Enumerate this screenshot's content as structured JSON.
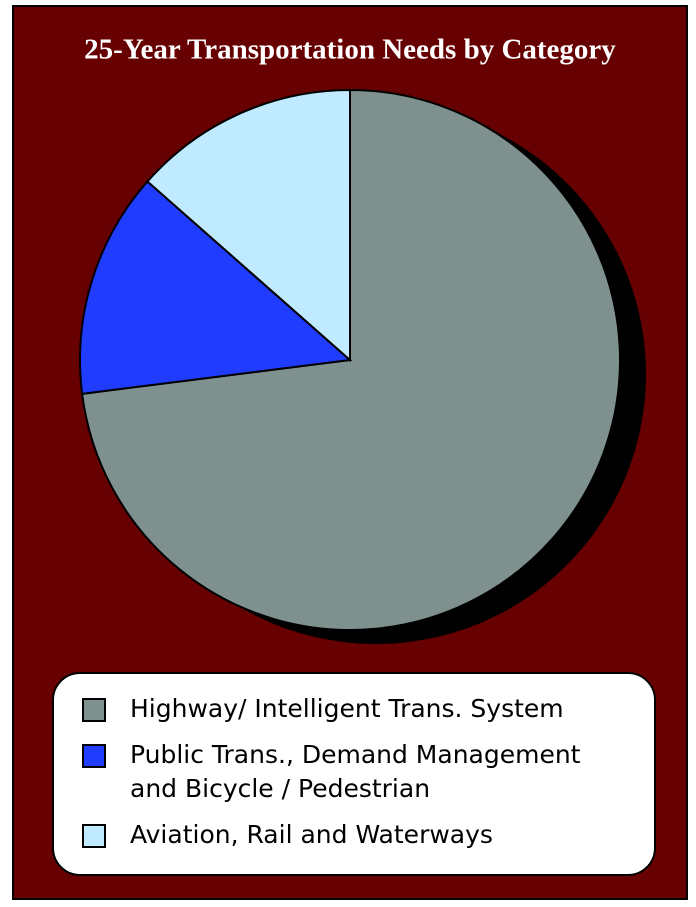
{
  "chart_data": {
    "type": "pie",
    "title": "25-Year Transportation Needs by Category",
    "categories": [
      "Highway/ Intelligent Trans. System",
      "Public Trans., Demand Management and Bicycle / Pedestrian",
      "Aviation, Rail and Waterways"
    ],
    "values": [
      73,
      13.5,
      13.5
    ],
    "colors": [
      "#7f918e",
      "#1f3cff",
      "#bfeaff"
    ],
    "background": "#670000"
  }
}
